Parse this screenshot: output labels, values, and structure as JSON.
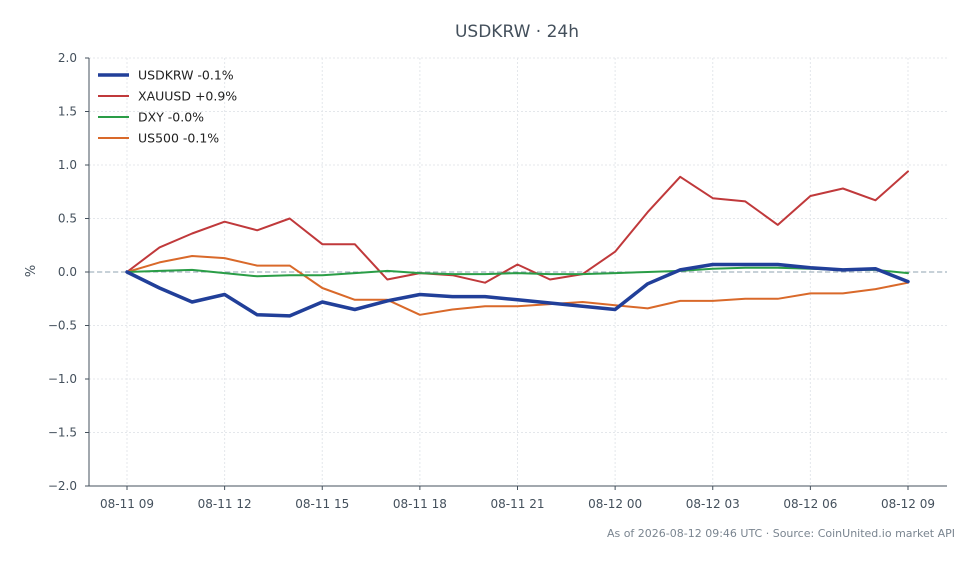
{
  "chart_data": {
    "type": "line",
    "title": "USDKRW · 24h",
    "xlabel": "",
    "ylabel": "%",
    "ylim": [
      -2.0,
      2.0
    ],
    "yticks": [
      "−2.0",
      "−1.5",
      "−1.0",
      "−0.5",
      "0.0",
      "0.5",
      "1.0",
      "1.5",
      "2.0"
    ],
    "ytick_values": [
      -2.0,
      -1.5,
      -1.0,
      -0.5,
      0.0,
      0.5,
      1.0,
      1.5,
      2.0
    ],
    "x_hours": [
      0,
      1,
      2,
      3,
      4,
      5,
      6,
      7,
      8,
      9,
      10,
      11,
      12,
      13,
      14,
      15,
      16,
      17,
      18,
      19,
      20,
      21,
      22,
      23,
      24
    ],
    "xticks": [
      "08-11 09",
      "08-11 12",
      "08-11 15",
      "08-11 18",
      "08-11 21",
      "08-12 00",
      "08-12 03",
      "08-12 06",
      "08-12 09"
    ],
    "xtick_hours": [
      0,
      3,
      6,
      9,
      12,
      15,
      18,
      21,
      24
    ],
    "grid": true,
    "zero_line": true,
    "legend_position": "top-left",
    "series": [
      {
        "name": "USDKRW -0.1%",
        "color": "#213f99",
        "width": 3.5,
        "values": [
          0.0,
          -0.15,
          -0.28,
          -0.21,
          -0.4,
          -0.41,
          -0.28,
          -0.35,
          -0.27,
          -0.21,
          -0.23,
          -0.23,
          -0.26,
          -0.29,
          -0.32,
          -0.35,
          -0.11,
          0.02,
          0.07,
          0.07,
          0.07,
          0.04,
          0.02,
          0.03,
          -0.09
        ]
      },
      {
        "name": "XAUUSD +0.9%",
        "color": "#c0393b",
        "width": 2,
        "values": [
          0.0,
          0.23,
          0.36,
          0.47,
          0.39,
          0.5,
          0.26,
          0.26,
          -0.07,
          -0.01,
          -0.03,
          -0.1,
          0.07,
          -0.07,
          -0.02,
          0.19,
          0.56,
          0.89,
          0.69,
          0.66,
          0.44,
          0.71,
          0.78,
          0.67,
          0.94
        ]
      },
      {
        "name": "DXY -0.0%",
        "color": "#2a9d47",
        "width": 2,
        "values": [
          0.0,
          0.01,
          0.02,
          -0.01,
          -0.04,
          -0.03,
          -0.03,
          -0.01,
          0.01,
          -0.01,
          -0.02,
          -0.02,
          -0.01,
          -0.02,
          -0.02,
          -0.01,
          0.0,
          0.01,
          0.03,
          0.04,
          0.04,
          0.03,
          0.02,
          0.02,
          -0.01
        ]
      },
      {
        "name": "US500 -0.1%",
        "color": "#d9692a",
        "width": 2,
        "values": [
          0.0,
          0.09,
          0.15,
          0.13,
          0.06,
          0.06,
          -0.15,
          -0.26,
          -0.26,
          -0.4,
          -0.35,
          -0.32,
          -0.32,
          -0.3,
          -0.28,
          -0.31,
          -0.34,
          -0.27,
          -0.27,
          -0.25,
          -0.25,
          -0.2,
          -0.2,
          -0.16,
          -0.1
        ]
      }
    ],
    "footer": "As of 2026-08-12 09:46 UTC · Source: CoinUnited.io market API"
  }
}
